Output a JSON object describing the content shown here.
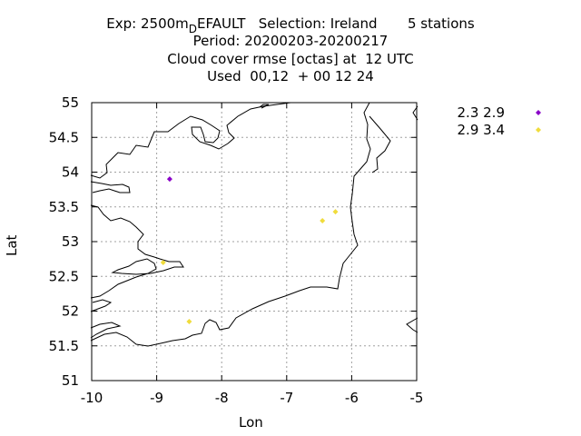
{
  "title": {
    "exp_prefix": "Exp: 2500m",
    "exp_sub": "D",
    "exp_rest": "EFAULT   Selection: Ireland       5 stations",
    "line2": "Period: 20200203-20200217",
    "line3": "Cloud cover rmse [octas] at  12 UTC",
    "line4": "Used  00,12  + 00 12 24"
  },
  "chart_data": {
    "type": "scatter",
    "xlabel": "Lon",
    "ylabel": "Lat",
    "xlim": [
      -10,
      -5
    ],
    "ylim": [
      51,
      55
    ],
    "x_ticks": [
      "-10",
      "-9",
      "-8",
      "-7",
      "-6",
      "-5"
    ],
    "y_ticks": [
      "51",
      "51.5",
      "52",
      "52.5",
      "53",
      "53.5",
      "54",
      "54.5",
      "55"
    ],
    "grid": true,
    "legend_position": "top-right, outside plot",
    "series": [
      {
        "name": "2.3 2.9",
        "color": "#8a00c8",
        "marker": "diamond",
        "points": [
          [
            -8.8,
            53.9
          ]
        ]
      },
      {
        "name": "2.9 3.4",
        "color": "#f0dc3c",
        "marker": "diamond",
        "points": [
          [
            -8.9,
            52.7
          ],
          [
            -8.5,
            51.85
          ],
          [
            -6.45,
            53.3
          ],
          [
            -6.25,
            53.43
          ]
        ]
      }
    ]
  }
}
